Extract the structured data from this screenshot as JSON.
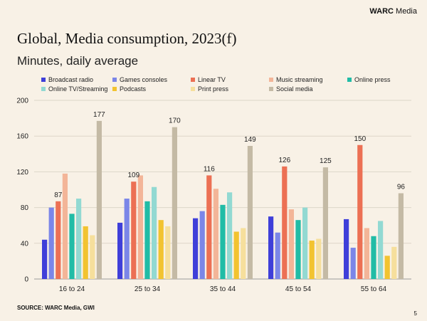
{
  "brand": {
    "strong": "WARC",
    "rest": " Media"
  },
  "page_number": "5",
  "source": "SOURCE: WARC Media, GWI",
  "chart_data": {
    "type": "bar",
    "title": "Global, Media consumption, 2023(f)",
    "subtitle": "Minutes, daily average",
    "categories": [
      "16 to 24",
      "25 to 34",
      "35 to 44",
      "45 to 54",
      "55 to 64"
    ],
    "ylim": [
      0,
      200
    ],
    "yticks": [
      0,
      40,
      80,
      120,
      160,
      200
    ],
    "grid": true,
    "legend_position": "top",
    "series": [
      {
        "name": "Broadcast radio",
        "color": "#3f3fd9",
        "values": [
          44,
          63,
          68,
          70,
          67
        ]
      },
      {
        "name": "Games consoles",
        "color": "#7b86e8",
        "values": [
          80,
          90,
          76,
          52,
          35
        ]
      },
      {
        "name": "Linear TV",
        "color": "#ec7054",
        "values": [
          87,
          109,
          116,
          126,
          150
        ]
      },
      {
        "name": "Music streaming",
        "color": "#f3b598",
        "values": [
          118,
          116,
          101,
          78,
          57
        ]
      },
      {
        "name": "Online press",
        "color": "#21bca6",
        "values": [
          73,
          87,
          83,
          66,
          48
        ]
      },
      {
        "name": "Online TV/Streaming",
        "color": "#92d9d2",
        "values": [
          90,
          103,
          97,
          80,
          65
        ]
      },
      {
        "name": "Podcasts",
        "color": "#f2c330",
        "values": [
          59,
          66,
          53,
          43,
          26
        ]
      },
      {
        "name": "Print press",
        "color": "#f6df9c",
        "values": [
          49,
          59,
          57,
          45,
          36
        ]
      },
      {
        "name": "Social media",
        "color": "#c4baa5",
        "values": [
          177,
          170,
          149,
          125,
          96
        ]
      }
    ],
    "data_labels": [
      {
        "series": "Linear TV",
        "category": "16 to 24",
        "text": "87"
      },
      {
        "series": "Social media",
        "category": "16 to 24",
        "text": "177"
      },
      {
        "series": "Linear TV",
        "category": "25 to 34",
        "text": "109"
      },
      {
        "series": "Social media",
        "category": "25 to 34",
        "text": "170"
      },
      {
        "series": "Linear TV",
        "category": "35 to 44",
        "text": "116"
      },
      {
        "series": "Social media",
        "category": "35 to 44",
        "text": "149"
      },
      {
        "series": "Linear TV",
        "category": "45 to 54",
        "text": "126"
      },
      {
        "series": "Social media",
        "category": "45 to 54",
        "text": "125"
      },
      {
        "series": "Linear TV",
        "category": "55 to 64",
        "text": "150"
      },
      {
        "series": "Social media",
        "category": "55 to 64",
        "text": "96"
      }
    ]
  }
}
